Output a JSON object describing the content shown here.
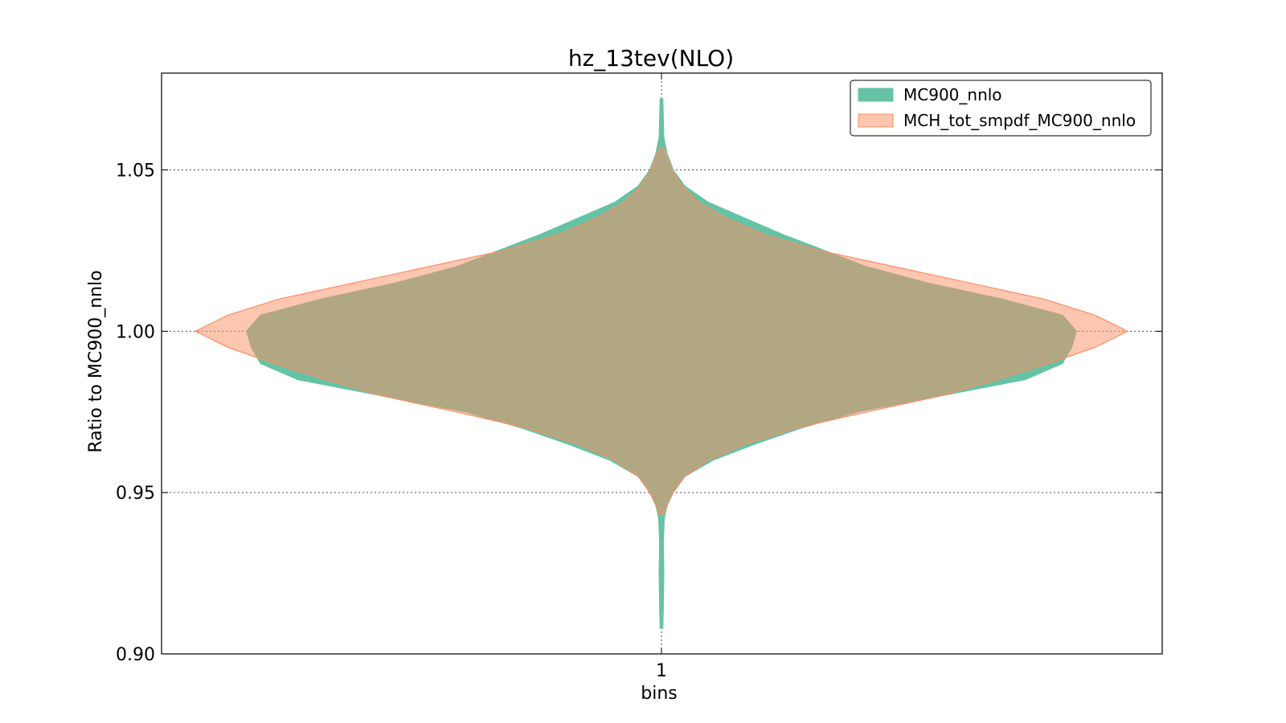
{
  "chart_data": {
    "type": "violin",
    "title": "hz_13tev(NLO)",
    "xlabel": "bins",
    "ylabel": "Ratio to MC900_nnlo",
    "categories": [
      "1"
    ],
    "ylim": [
      0.9,
      1.08
    ],
    "yticks": [
      0.9,
      0.95,
      1.0,
      1.05
    ],
    "ytick_labels": [
      "0.90",
      "0.95",
      "1.00",
      "1.05"
    ],
    "grid": true,
    "legend_position": "upper right",
    "series": [
      {
        "name": "MC900_nnlo",
        "color": "#66c2a5",
        "stroke": "#66c2a5",
        "profile": [
          [
            0.908,
            0.003
          ],
          [
            0.915,
            0.004
          ],
          [
            0.925,
            0.005
          ],
          [
            0.935,
            0.004
          ],
          [
            0.942,
            0.006
          ],
          [
            0.946,
            0.012
          ],
          [
            0.95,
            0.025
          ],
          [
            0.955,
            0.05
          ],
          [
            0.96,
            0.11
          ],
          [
            0.965,
            0.2
          ],
          [
            0.97,
            0.3
          ],
          [
            0.975,
            0.42
          ],
          [
            0.98,
            0.6
          ],
          [
            0.985,
            0.78
          ],
          [
            0.99,
            0.86
          ],
          [
            0.995,
            0.88
          ],
          [
            1.0,
            0.89
          ],
          [
            1.005,
            0.86
          ],
          [
            1.01,
            0.73
          ],
          [
            1.015,
            0.57
          ],
          [
            1.02,
            0.44
          ],
          [
            1.025,
            0.35
          ],
          [
            1.03,
            0.26
          ],
          [
            1.035,
            0.18
          ],
          [
            1.04,
            0.1
          ],
          [
            1.045,
            0.05
          ],
          [
            1.05,
            0.025
          ],
          [
            1.055,
            0.012
          ],
          [
            1.06,
            0.005
          ],
          [
            1.066,
            0.004
          ],
          [
            1.072,
            0.003
          ]
        ]
      },
      {
        "name": "MCH_tot_smpdf_MC900_nnlo",
        "color": "#fc8d62",
        "stroke": "#fc8d62",
        "profile": [
          [
            0.943,
            0.004
          ],
          [
            0.946,
            0.012
          ],
          [
            0.95,
            0.025
          ],
          [
            0.955,
            0.05
          ],
          [
            0.96,
            0.1
          ],
          [
            0.965,
            0.18
          ],
          [
            0.97,
            0.29
          ],
          [
            0.975,
            0.44
          ],
          [
            0.98,
            0.6
          ],
          [
            0.985,
            0.72
          ],
          [
            0.99,
            0.83
          ],
          [
            0.995,
            0.93
          ],
          [
            1.0,
            1.0
          ],
          [
            1.005,
            0.93
          ],
          [
            1.01,
            0.82
          ],
          [
            1.015,
            0.66
          ],
          [
            1.02,
            0.5
          ],
          [
            1.025,
            0.34
          ],
          [
            1.03,
            0.22
          ],
          [
            1.035,
            0.14
          ],
          [
            1.04,
            0.08
          ],
          [
            1.045,
            0.045
          ],
          [
            1.05,
            0.022
          ],
          [
            1.054,
            0.012
          ],
          [
            1.057,
            0.004
          ]
        ]
      }
    ]
  }
}
